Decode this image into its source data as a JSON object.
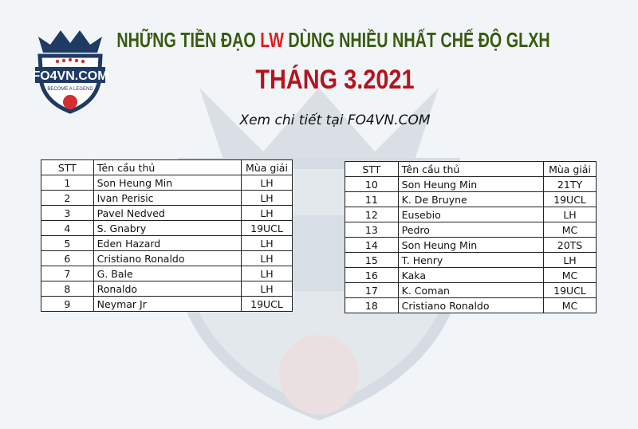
{
  "header": {
    "title_pre": "NHỮNG TIỀN ĐẠO ",
    "title_highlight": "LW",
    "title_post": " DÙNG NHIỀU NHẤT CHẾ ĐỘ GLXH",
    "month": "THÁNG 3.2021",
    "subtitle": "Xem chi tiết tại FO4VN.COM"
  },
  "logo": {
    "brand": "FO4VN.COM",
    "tagline": "BECOME A LEGEND"
  },
  "colors": {
    "title": "#3a5a10",
    "highlight": "#e21b1b",
    "month": "#b3141e"
  },
  "columns": [
    "STT",
    "Tên cầu thủ",
    "Mùa giải"
  ],
  "left_rows": [
    [
      "1",
      "Son Heung Min",
      "LH"
    ],
    [
      "2",
      "Ivan Perisic",
      "LH"
    ],
    [
      "3",
      "Pavel Nedved",
      "LH"
    ],
    [
      "4",
      "S. Gnabry",
      "19UCL"
    ],
    [
      "5",
      "Eden Hazard",
      "LH"
    ],
    [
      "6",
      "Cristiano Ronaldo",
      "LH"
    ],
    [
      "7",
      "G. Bale",
      "LH"
    ],
    [
      "8",
      "Ronaldo",
      "LH"
    ],
    [
      "9",
      "Neymar Jr",
      "19UCL"
    ]
  ],
  "right_rows": [
    [
      "10",
      "Son Heung Min",
      "21TY"
    ],
    [
      "11",
      "K. De Bruyne",
      "19UCL"
    ],
    [
      "12",
      "Eusebio",
      "LH"
    ],
    [
      "13",
      "Pedro",
      "MC"
    ],
    [
      "14",
      "Son Heung Min",
      "20TS"
    ],
    [
      "15",
      "T. Henry",
      "LH"
    ],
    [
      "16",
      "Kaka",
      "MC"
    ],
    [
      "17",
      "K. Coman",
      "19UCL"
    ],
    [
      "18",
      "Cristiano Ronaldo",
      "MC"
    ]
  ]
}
